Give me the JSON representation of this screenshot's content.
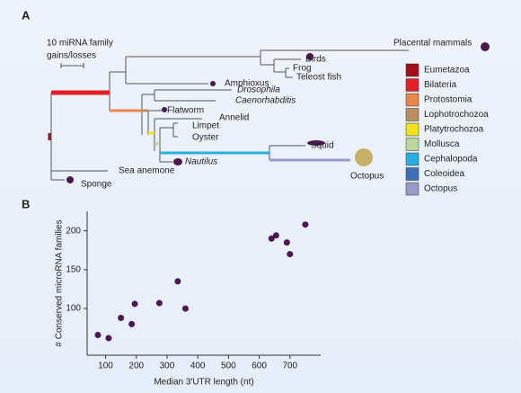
{
  "panel_a": {
    "label": "A",
    "scale_label": [
      "10 miRNA family",
      "gains/losses"
    ],
    "taxa": [
      "Placental mammals",
      "Birds",
      "Frog",
      "Teleost fish",
      "Amphioxus",
      "Drosophila",
      "Caenorhabditis",
      "Flatworm",
      "Annelid",
      "Limpet",
      "Oyster",
      "Squid",
      "Nautilus",
      "Octopus",
      "Sea anemone",
      "Sponge"
    ],
    "legend": [
      {
        "name": "Eumetazoa",
        "color": "#a50f1b"
      },
      {
        "name": "Bilateria",
        "color": "#e3202a"
      },
      {
        "name": "Protostomia",
        "color": "#e8874a"
      },
      {
        "name": "Lophotrochozoa",
        "color": "#b89060"
      },
      {
        "name": "Platytrochozoa",
        "color": "#f2e21c"
      },
      {
        "name": "Mollusca",
        "color": "#b9d99c"
      },
      {
        "name": "Cephalopoda",
        "color": "#29aee0"
      },
      {
        "name": "Coleoidea",
        "color": "#3d6fb6"
      },
      {
        "name": "Octopus",
        "color": "#9a9ac8"
      }
    ]
  },
  "chart_data": {
    "type": "scatter",
    "label": "B",
    "x_label": "Median 3′UTR length (nt)",
    "y_label": "# Conserved microRNA families",
    "color": "#4a1a4e",
    "x": [
      75,
      110,
      150,
      185,
      195,
      275,
      335,
      360,
      640,
      655,
      690,
      700,
      750
    ],
    "y": [
      66,
      62,
      88,
      80,
      106,
      107,
      135,
      100,
      190,
      194,
      185,
      170,
      208
    ],
    "xlim": [
      40,
      800
    ],
    "ylim": [
      40,
      225
    ],
    "xticks": [
      100,
      200,
      300,
      400,
      500,
      600,
      700
    ],
    "yticks": [
      100,
      150,
      200
    ]
  }
}
